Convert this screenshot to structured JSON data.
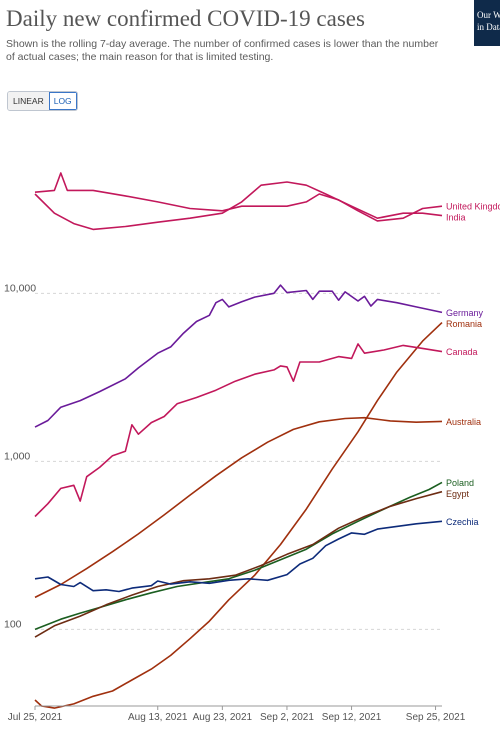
{
  "header": {
    "title": "Daily new confirmed COVID-19 cases",
    "subtitle": "Shown is the rolling 7-day average. The number of confirmed cases is lower than the number of actual cases; the main reason for that is limited testing.",
    "logo_line1": "Our World",
    "logo_line2": "in Data"
  },
  "controls": {
    "linear_label": "LINEAR",
    "log_label": "LOG",
    "active": "LOG"
  },
  "chart_data": {
    "type": "line",
    "title": "Daily new confirmed COVID-19 cases",
    "subtitle": "Shown is the rolling 7-day average. The number of confirmed cases is lower than the number of actual cases; the main reason for that is limited testing.",
    "yscale": "log",
    "ylim": [
      35,
      120000
    ],
    "xlim": [
      "2021-07-25",
      "2021-09-26"
    ],
    "grid": "horizontal dashed",
    "y_ticks": [
      {
        "value": 100,
        "label": "100"
      },
      {
        "value": 1000,
        "label": "1,000"
      },
      {
        "value": 10000,
        "label": "10,000"
      }
    ],
    "x_ticks": [
      {
        "date": "2021-07-25",
        "label": "Jul 25, 2021"
      },
      {
        "date": "2021-08-13",
        "label": "Aug 13, 2021"
      },
      {
        "date": "2021-08-23",
        "label": "Aug 23, 2021"
      },
      {
        "date": "2021-09-02",
        "label": "Sep 2, 2021"
      },
      {
        "date": "2021-09-12",
        "label": "Sep 12, 2021"
      },
      {
        "date": "2021-09-25",
        "label": "Sep 25, 2021"
      }
    ],
    "series": [
      {
        "name": "United Kingdom",
        "color": "#c2185b",
        "points": [
          [
            "2021-07-25",
            40000
          ],
          [
            "2021-07-28",
            41000
          ],
          [
            "2021-07-29",
            52000
          ],
          [
            "2021-07-30",
            41000
          ],
          [
            "2021-08-03",
            41000
          ],
          [
            "2021-08-08",
            38000
          ],
          [
            "2021-08-13",
            35000
          ],
          [
            "2021-08-18",
            32000
          ],
          [
            "2021-08-23",
            31000
          ],
          [
            "2021-08-26",
            33000
          ],
          [
            "2021-08-29",
            33000
          ],
          [
            "2021-09-02",
            33000
          ],
          [
            "2021-09-05",
            35000
          ],
          [
            "2021-09-07",
            39000
          ],
          [
            "2021-09-10",
            36000
          ],
          [
            "2021-09-13",
            31000
          ],
          [
            "2021-09-16",
            27000
          ],
          [
            "2021-09-20",
            28000
          ],
          [
            "2021-09-23",
            32000
          ],
          [
            "2021-09-26",
            33000
          ]
        ]
      },
      {
        "name": "India",
        "color": "#c2185b",
        "points": [
          [
            "2021-07-25",
            39000
          ],
          [
            "2021-07-28",
            30000
          ],
          [
            "2021-07-31",
            26000
          ],
          [
            "2021-08-03",
            24000
          ],
          [
            "2021-08-08",
            25000
          ],
          [
            "2021-08-13",
            26500
          ],
          [
            "2021-08-18",
            28000
          ],
          [
            "2021-08-23",
            30000
          ],
          [
            "2021-08-26",
            35000
          ],
          [
            "2021-08-29",
            44000
          ],
          [
            "2021-09-02",
            46000
          ],
          [
            "2021-09-05",
            44000
          ],
          [
            "2021-09-08",
            39000
          ],
          [
            "2021-09-12",
            33000
          ],
          [
            "2021-09-16",
            28000
          ],
          [
            "2021-09-20",
            30000
          ],
          [
            "2021-09-23",
            30000
          ],
          [
            "2021-09-26",
            29000
          ]
        ]
      },
      {
        "name": "Germany",
        "color": "#6a1b9a",
        "points": [
          [
            "2021-07-25",
            1600
          ],
          [
            "2021-07-27",
            1750
          ],
          [
            "2021-07-29",
            2100
          ],
          [
            "2021-08-01",
            2300
          ],
          [
            "2021-08-04",
            2600
          ],
          [
            "2021-08-08",
            3100
          ],
          [
            "2021-08-10",
            3600
          ],
          [
            "2021-08-13",
            4400
          ],
          [
            "2021-08-15",
            4800
          ],
          [
            "2021-08-17",
            5800
          ],
          [
            "2021-08-19",
            6800
          ],
          [
            "2021-08-21",
            7400
          ],
          [
            "2021-08-22",
            8800
          ],
          [
            "2021-08-23",
            9200
          ],
          [
            "2021-08-24",
            8300
          ],
          [
            "2021-08-26",
            8900
          ],
          [
            "2021-08-28",
            9500
          ],
          [
            "2021-08-31",
            10000
          ],
          [
            "2021-09-01",
            11200
          ],
          [
            "2021-09-02",
            10100
          ],
          [
            "2021-09-05",
            10400
          ],
          [
            "2021-09-06",
            9200
          ],
          [
            "2021-09-07",
            10300
          ],
          [
            "2021-09-09",
            10300
          ],
          [
            "2021-09-10",
            9100
          ],
          [
            "2021-09-11",
            10200
          ],
          [
            "2021-09-13",
            9000
          ],
          [
            "2021-09-14",
            9600
          ],
          [
            "2021-09-15",
            8400
          ],
          [
            "2021-09-16",
            9200
          ],
          [
            "2021-09-19",
            8800
          ],
          [
            "2021-09-22",
            8300
          ],
          [
            "2021-09-26",
            7700
          ]
        ]
      },
      {
        "name": "Romania",
        "color": "#a0300e",
        "points": [
          [
            "2021-07-25",
            38
          ],
          [
            "2021-07-26",
            35
          ],
          [
            "2021-07-28",
            34
          ],
          [
            "2021-07-31",
            36
          ],
          [
            "2021-08-03",
            40
          ],
          [
            "2021-08-06",
            43
          ],
          [
            "2021-08-09",
            50
          ],
          [
            "2021-08-12",
            58
          ],
          [
            "2021-08-15",
            70
          ],
          [
            "2021-08-18",
            88
          ],
          [
            "2021-08-21",
            112
          ],
          [
            "2021-08-24",
            150
          ],
          [
            "2021-08-28",
            210
          ],
          [
            "2021-09-01",
            320
          ],
          [
            "2021-09-05",
            520
          ],
          [
            "2021-09-09",
            900
          ],
          [
            "2021-09-13",
            1500
          ],
          [
            "2021-09-16",
            2300
          ],
          [
            "2021-09-19",
            3400
          ],
          [
            "2021-09-23",
            5200
          ],
          [
            "2021-09-26",
            6700
          ]
        ]
      },
      {
        "name": "Canada",
        "color": "#c2185b",
        "points": [
          [
            "2021-07-25",
            470
          ],
          [
            "2021-07-27",
            560
          ],
          [
            "2021-07-29",
            690
          ],
          [
            "2021-07-31",
            720
          ],
          [
            "2021-08-01",
            580
          ],
          [
            "2021-08-02",
            810
          ],
          [
            "2021-08-04",
            920
          ],
          [
            "2021-08-06",
            1080
          ],
          [
            "2021-08-08",
            1150
          ],
          [
            "2021-08-09",
            1650
          ],
          [
            "2021-08-10",
            1450
          ],
          [
            "2021-08-12",
            1700
          ],
          [
            "2021-08-14",
            1850
          ],
          [
            "2021-08-16",
            2200
          ],
          [
            "2021-08-19",
            2400
          ],
          [
            "2021-08-22",
            2650
          ],
          [
            "2021-08-25",
            3000
          ],
          [
            "2021-08-28",
            3300
          ],
          [
            "2021-08-31",
            3500
          ],
          [
            "2021-09-01",
            3700
          ],
          [
            "2021-09-02",
            3650
          ],
          [
            "2021-09-03",
            3000
          ],
          [
            "2021-09-04",
            3900
          ],
          [
            "2021-09-07",
            3900
          ],
          [
            "2021-09-10",
            4200
          ],
          [
            "2021-09-12",
            4100
          ],
          [
            "2021-09-13",
            5000
          ],
          [
            "2021-09-14",
            4400
          ],
          [
            "2021-09-17",
            4600
          ],
          [
            "2021-09-20",
            4900
          ],
          [
            "2021-09-23",
            4700
          ],
          [
            "2021-09-26",
            4500
          ]
        ]
      },
      {
        "name": "Australia",
        "color": "#a0300e",
        "points": [
          [
            "2021-07-25",
            155
          ],
          [
            "2021-07-29",
            185
          ],
          [
            "2021-08-02",
            230
          ],
          [
            "2021-08-06",
            290
          ],
          [
            "2021-08-10",
            370
          ],
          [
            "2021-08-14",
            480
          ],
          [
            "2021-08-18",
            630
          ],
          [
            "2021-08-22",
            820
          ],
          [
            "2021-08-26",
            1050
          ],
          [
            "2021-08-30",
            1300
          ],
          [
            "2021-09-03",
            1550
          ],
          [
            "2021-09-07",
            1720
          ],
          [
            "2021-09-11",
            1800
          ],
          [
            "2021-09-14",
            1820
          ],
          [
            "2021-09-18",
            1740
          ],
          [
            "2021-09-22",
            1710
          ],
          [
            "2021-09-26",
            1730
          ]
        ]
      },
      {
        "name": "Poland",
        "color": "#1b5e20",
        "points": [
          [
            "2021-07-25",
            100
          ],
          [
            "2021-07-29",
            115
          ],
          [
            "2021-08-01",
            125
          ],
          [
            "2021-08-04",
            135
          ],
          [
            "2021-08-08",
            150
          ],
          [
            "2021-08-12",
            165
          ],
          [
            "2021-08-16",
            180
          ],
          [
            "2021-08-20",
            190
          ],
          [
            "2021-08-24",
            200
          ],
          [
            "2021-08-28",
            225
          ],
          [
            "2021-09-01",
            260
          ],
          [
            "2021-09-05",
            300
          ],
          [
            "2021-09-09",
            370
          ],
          [
            "2021-09-13",
            440
          ],
          [
            "2021-09-17",
            520
          ],
          [
            "2021-09-21",
            610
          ],
          [
            "2021-09-24",
            680
          ],
          [
            "2021-09-26",
            750
          ]
        ]
      },
      {
        "name": "Egypt",
        "color": "#6d2c13",
        "points": [
          [
            "2021-07-25",
            90
          ],
          [
            "2021-07-28",
            105
          ],
          [
            "2021-08-01",
            120
          ],
          [
            "2021-08-05",
            140
          ],
          [
            "2021-08-09",
            160
          ],
          [
            "2021-08-13",
            180
          ],
          [
            "2021-08-17",
            195
          ],
          [
            "2021-08-21",
            200
          ],
          [
            "2021-08-25",
            210
          ],
          [
            "2021-08-29",
            240
          ],
          [
            "2021-09-02",
            280
          ],
          [
            "2021-09-06",
            320
          ],
          [
            "2021-09-10",
            400
          ],
          [
            "2021-09-14",
            470
          ],
          [
            "2021-09-18",
            540
          ],
          [
            "2021-09-22",
            600
          ],
          [
            "2021-09-26",
            660
          ]
        ]
      },
      {
        "name": "Czechia",
        "color": "#0d2b7a",
        "points": [
          [
            "2021-07-25",
            200
          ],
          [
            "2021-07-27",
            205
          ],
          [
            "2021-07-29",
            185
          ],
          [
            "2021-07-31",
            180
          ],
          [
            "2021-08-01",
            190
          ],
          [
            "2021-08-03",
            170
          ],
          [
            "2021-08-05",
            172
          ],
          [
            "2021-08-07",
            168
          ],
          [
            "2021-08-09",
            176
          ],
          [
            "2021-08-12",
            182
          ],
          [
            "2021-08-13",
            194
          ],
          [
            "2021-08-15",
            186
          ],
          [
            "2021-08-18",
            192
          ],
          [
            "2021-08-21",
            188
          ],
          [
            "2021-08-24",
            196
          ],
          [
            "2021-08-27",
            200
          ],
          [
            "2021-08-30",
            196
          ],
          [
            "2021-09-02",
            212
          ],
          [
            "2021-09-04",
            245
          ],
          [
            "2021-09-06",
            265
          ],
          [
            "2021-09-08",
            315
          ],
          [
            "2021-09-10",
            345
          ],
          [
            "2021-09-12",
            375
          ],
          [
            "2021-09-14",
            368
          ],
          [
            "2021-09-16",
            395
          ],
          [
            "2021-09-19",
            410
          ],
          [
            "2021-09-22",
            425
          ],
          [
            "2021-09-26",
            440
          ]
        ]
      }
    ],
    "legend": "labels at line ends (right)"
  }
}
